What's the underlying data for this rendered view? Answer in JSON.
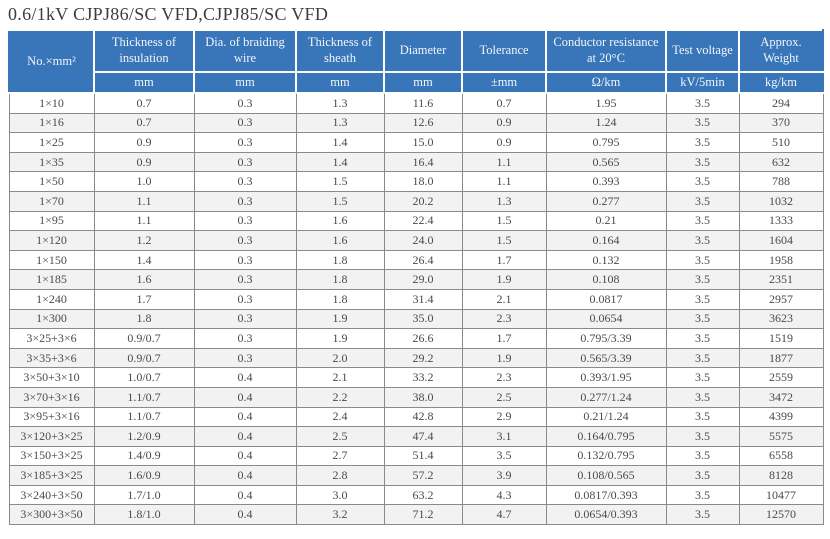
{
  "page": {
    "title": "0.6/1kV CJPJ86/SC VFD,CJPJ85/SC VFD"
  },
  "table": {
    "columns": [
      {
        "key": "size",
        "label": "No.×mm²",
        "unit": ""
      },
      {
        "key": "insulation",
        "label": "Thickness of insulation",
        "unit": "mm"
      },
      {
        "key": "braiding",
        "label": "Dia. of braiding wire",
        "unit": "mm"
      },
      {
        "key": "sheath",
        "label": "Thickness of sheath",
        "unit": "mm"
      },
      {
        "key": "diameter",
        "label": "Diameter",
        "unit": "mm"
      },
      {
        "key": "tolerance",
        "label": "Tolerance",
        "unit": "±mm"
      },
      {
        "key": "resistance",
        "label": "Conductor resistance at 20°C",
        "unit": "Ω/km"
      },
      {
        "key": "testvoltage",
        "label": "Test voltage",
        "unit": "kV/5min"
      },
      {
        "key": "weight",
        "label": "Approx. Weight",
        "unit": "kg/km"
      }
    ],
    "rows": [
      [
        "1×10",
        "0.7",
        "0.3",
        "1.3",
        "11.6",
        "0.7",
        "1.95",
        "3.5",
        "294"
      ],
      [
        "1×16",
        "0.7",
        "0.3",
        "1.3",
        "12.6",
        "0.9",
        "1.24",
        "3.5",
        "370"
      ],
      [
        "1×25",
        "0.9",
        "0.3",
        "1.4",
        "15.0",
        "0.9",
        "0.795",
        "3.5",
        "510"
      ],
      [
        "1×35",
        "0.9",
        "0.3",
        "1.4",
        "16.4",
        "1.1",
        "0.565",
        "3.5",
        "632"
      ],
      [
        "1×50",
        "1.0",
        "0.3",
        "1.5",
        "18.0",
        "1.1",
        "0.393",
        "3.5",
        "788"
      ],
      [
        "1×70",
        "1.1",
        "0.3",
        "1.5",
        "20.2",
        "1.3",
        "0.277",
        "3.5",
        "1032"
      ],
      [
        "1×95",
        "1.1",
        "0.3",
        "1.6",
        "22.4",
        "1.5",
        "0.21",
        "3.5",
        "1333"
      ],
      [
        "1×120",
        "1.2",
        "0.3",
        "1.6",
        "24.0",
        "1.5",
        "0.164",
        "3.5",
        "1604"
      ],
      [
        "1×150",
        "1.4",
        "0.3",
        "1.8",
        "26.4",
        "1.7",
        "0.132",
        "3.5",
        "1958"
      ],
      [
        "1×185",
        "1.6",
        "0.3",
        "1.8",
        "29.0",
        "1.9",
        "0.108",
        "3.5",
        "2351"
      ],
      [
        "1×240",
        "1.7",
        "0.3",
        "1.8",
        "31.4",
        "2.1",
        "0.0817",
        "3.5",
        "2957"
      ],
      [
        "1×300",
        "1.8",
        "0.3",
        "1.9",
        "35.0",
        "2.3",
        "0.0654",
        "3.5",
        "3623"
      ],
      [
        "3×25+3×6",
        "0.9/0.7",
        "0.3",
        "1.9",
        "26.6",
        "1.7",
        "0.795/3.39",
        "3.5",
        "1519"
      ],
      [
        "3×35+3×6",
        "0.9/0.7",
        "0.3",
        "2.0",
        "29.2",
        "1.9",
        "0.565/3.39",
        "3.5",
        "1877"
      ],
      [
        "3×50+3×10",
        "1.0/0.7",
        "0.4",
        "2.1",
        "33.2",
        "2.3",
        "0.393/1.95",
        "3.5",
        "2559"
      ],
      [
        "3×70+3×16",
        "1.1/0.7",
        "0.4",
        "2.2",
        "38.0",
        "2.5",
        "0.277/1.24",
        "3.5",
        "3472"
      ],
      [
        "3×95+3×16",
        "1.1/0.7",
        "0.4",
        "2.4",
        "42.8",
        "2.9",
        "0.21/1.24",
        "3.5",
        "4399"
      ],
      [
        "3×120+3×25",
        "1.2/0.9",
        "0.4",
        "2.5",
        "47.4",
        "3.1",
        "0.164/0.795",
        "3.5",
        "5575"
      ],
      [
        "3×150+3×25",
        "1.4/0.9",
        "0.4",
        "2.7",
        "51.4",
        "3.5",
        "0.132/0.795",
        "3.5",
        "6558"
      ],
      [
        "3×185+3×25",
        "1.6/0.9",
        "0.4",
        "2.8",
        "57.2",
        "3.9",
        "0.108/0.565",
        "3.5",
        "8128"
      ],
      [
        "3×240+3×50",
        "1.7/1.0",
        "0.4",
        "3.0",
        "63.2",
        "4.3",
        "0.0817/0.393",
        "3.5",
        "10477"
      ],
      [
        "3×300+3×50",
        "1.8/1.0",
        "0.4",
        "3.2",
        "71.2",
        "4.7",
        "0.0654/0.393",
        "3.5",
        "12570"
      ]
    ],
    "colors": {
      "header_bg": "#3876b9",
      "header_text": "#f2f6fb",
      "stripe_bg": "#f2f2f2",
      "border": "#8a8a8a",
      "cell_text": "#4a4a4a"
    }
  }
}
